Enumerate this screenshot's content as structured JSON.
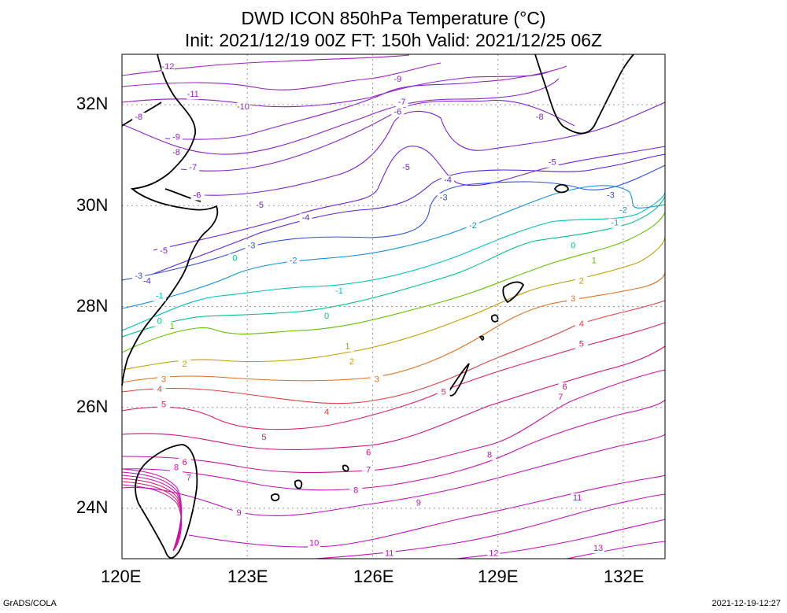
{
  "title": {
    "line1": "DWD ICON 850hPa Temperature (°C)",
    "line2": "Init: 2021/12/19 00Z  FT: 150h  Valid: 2021/12/25 06Z"
  },
  "axes": {
    "lat_labels": [
      "32N",
      "30N",
      "28N",
      "26N",
      "24N"
    ],
    "lon_labels": [
      "120E",
      "123E",
      "126E",
      "129E",
      "132E"
    ],
    "lat_range": [
      23,
      33
    ],
    "lon_range": [
      120,
      133
    ]
  },
  "footer": {
    "left": "GrADS/COLA",
    "right": "2021-12-19-12:27"
  },
  "contour_colors": {
    "-12": "#a020c0",
    "-11": "#9a20c8",
    "-10": "#9020c8",
    "-9": "#8a20cc",
    "-8": "#8a20cc",
    "-7": "#8020d0",
    "-6": "#7a20d0",
    "-5": "#7020d8",
    "-4": "#5a20e0",
    "-3": "#3050e0",
    "-2": "#1090e0",
    "-1": "#00c0c0",
    "0": "#00c080",
    "1": "#60c000",
    "2": "#c0a000",
    "3": "#e07020",
    "4": "#e04040",
    "5": "#e02060",
    "6": "#d01080",
    "7": "#d010a0",
    "8": "#c810b0",
    "9": "#c010c0",
    "10": "#c010c0",
    "11": "#c010c0",
    "12": "#c010c0",
    "13": "#c010c0"
  },
  "contour_labels": [
    {
      "text": "-12",
      "lon": 121.1,
      "lat": 32.75
    },
    {
      "text": "-11",
      "lon": 121.7,
      "lat": 32.2
    },
    {
      "text": "-10",
      "lon": 122.9,
      "lat": 31.95
    },
    {
      "text": "-9",
      "lon": 126.6,
      "lat": 32.5
    },
    {
      "text": "-9",
      "lon": 121.3,
      "lat": 31.35
    },
    {
      "text": "-8",
      "lon": 120.4,
      "lat": 31.75
    },
    {
      "text": "-8",
      "lon": 121.3,
      "lat": 31.05
    },
    {
      "text": "-8",
      "lon": 130.0,
      "lat": 31.75
    },
    {
      "text": "-7",
      "lon": 121.7,
      "lat": 30.75
    },
    {
      "text": "-7",
      "lon": 126.7,
      "lat": 32.05
    },
    {
      "text": "-6",
      "lon": 121.8,
      "lat": 30.2
    },
    {
      "text": "-6",
      "lon": 126.6,
      "lat": 31.85
    },
    {
      "text": "-5",
      "lon": 123.3,
      "lat": 30.0
    },
    {
      "text": "-5",
      "lon": 126.8,
      "lat": 30.75
    },
    {
      "text": "-5",
      "lon": 121.0,
      "lat": 29.1
    },
    {
      "text": "-5",
      "lon": 130.3,
      "lat": 30.85
    },
    {
      "text": "-4",
      "lon": 124.4,
      "lat": 29.75
    },
    {
      "text": "-4",
      "lon": 127.8,
      "lat": 30.5
    },
    {
      "text": "-4",
      "lon": 120.6,
      "lat": 28.5
    },
    {
      "text": "-3",
      "lon": 123.1,
      "lat": 29.2
    },
    {
      "text": "-3",
      "lon": 120.4,
      "lat": 28.6
    },
    {
      "text": "-3",
      "lon": 127.7,
      "lat": 30.15
    },
    {
      "text": "-3",
      "lon": 131.7,
      "lat": 30.2
    },
    {
      "text": "-2",
      "lon": 124.1,
      "lat": 28.9
    },
    {
      "text": "-2",
      "lon": 128.4,
      "lat": 29.6
    },
    {
      "text": "-2",
      "lon": 132.0,
      "lat": 29.9
    },
    {
      "text": "-1",
      "lon": 120.9,
      "lat": 28.2
    },
    {
      "text": "-1",
      "lon": 125.2,
      "lat": 28.3
    },
    {
      "text": "-1",
      "lon": 131.8,
      "lat": 29.65
    },
    {
      "text": "0",
      "lon": 122.7,
      "lat": 28.95
    },
    {
      "text": "0",
      "lon": 120.9,
      "lat": 27.7
    },
    {
      "text": "0",
      "lon": 124.9,
      "lat": 27.8
    },
    {
      "text": "0",
      "lon": 130.8,
      "lat": 29.2
    },
    {
      "text": "1",
      "lon": 121.2,
      "lat": 27.6
    },
    {
      "text": "1",
      "lon": 125.4,
      "lat": 27.2
    },
    {
      "text": "1",
      "lon": 131.3,
      "lat": 28.9
    },
    {
      "text": "2",
      "lon": 121.5,
      "lat": 26.85
    },
    {
      "text": "2",
      "lon": 125.5,
      "lat": 26.9
    },
    {
      "text": "2",
      "lon": 131.0,
      "lat": 28.5
    },
    {
      "text": "3",
      "lon": 121.0,
      "lat": 26.55
    },
    {
      "text": "3",
      "lon": 126.1,
      "lat": 26.55
    },
    {
      "text": "3",
      "lon": 130.8,
      "lat": 28.15
    },
    {
      "text": "4",
      "lon": 120.9,
      "lat": 26.35
    },
    {
      "text": "4",
      "lon": 124.9,
      "lat": 25.9
    },
    {
      "text": "4",
      "lon": 131.0,
      "lat": 27.65
    },
    {
      "text": "5",
      "lon": 121.0,
      "lat": 26.05
    },
    {
      "text": "5",
      "lon": 123.4,
      "lat": 25.4
    },
    {
      "text": "5",
      "lon": 127.7,
      "lat": 26.3
    },
    {
      "text": "5",
      "lon": 131.0,
      "lat": 27.25
    },
    {
      "text": "6",
      "lon": 121.5,
      "lat": 24.9
    },
    {
      "text": "6",
      "lon": 125.9,
      "lat": 25.1
    },
    {
      "text": "6",
      "lon": 130.6,
      "lat": 26.4
    },
    {
      "text": "7",
      "lon": 121.6,
      "lat": 24.6
    },
    {
      "text": "7",
      "lon": 125.9,
      "lat": 24.75
    },
    {
      "text": "7",
      "lon": 130.5,
      "lat": 26.2
    },
    {
      "text": "8",
      "lon": 121.3,
      "lat": 24.8
    },
    {
      "text": "8",
      "lon": 125.6,
      "lat": 24.35
    },
    {
      "text": "8",
      "lon": 128.8,
      "lat": 25.05
    },
    {
      "text": "9",
      "lon": 122.8,
      "lat": 23.9
    },
    {
      "text": "9",
      "lon": 127.1,
      "lat": 24.1
    },
    {
      "text": "10",
      "lon": 124.6,
      "lat": 23.3
    },
    {
      "text": "11",
      "lon": 126.4,
      "lat": 23.1
    },
    {
      "text": "11",
      "lon": 130.9,
      "lat": 24.2
    },
    {
      "text": "12",
      "lon": 128.9,
      "lat": 23.1
    },
    {
      "text": "13",
      "lon": 131.4,
      "lat": 23.2
    }
  ]
}
